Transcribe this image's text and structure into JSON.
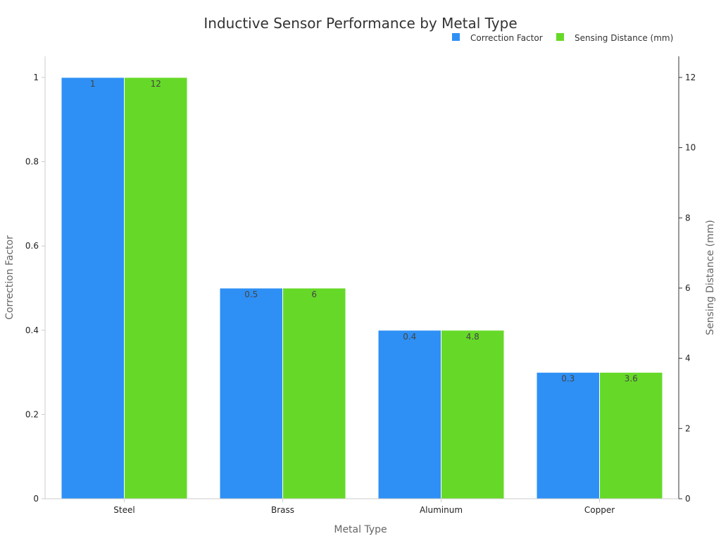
{
  "chart_data": {
    "type": "bar",
    "title": "Inductive Sensor Performance by Metal Type",
    "xlabel": "Metal Type",
    "categories": [
      "Steel",
      "Brass",
      "Aluminum",
      "Copper"
    ],
    "series": [
      {
        "name": "Correction Factor",
        "axis": "left",
        "color": "#2e90f5",
        "values": [
          1,
          0.5,
          0.4,
          0.3
        ],
        "labels": [
          "1",
          "0.5",
          "0.4",
          "0.3"
        ]
      },
      {
        "name": "Sensing Distance (mm)",
        "axis": "right",
        "color": "#66d928",
        "values": [
          12,
          6,
          4.8,
          3.6
        ],
        "labels": [
          "12",
          "6",
          "4.8",
          "3.6"
        ]
      }
    ],
    "y_left": {
      "label": "Correction Factor",
      "range": [
        0,
        1.05
      ],
      "ticks": [
        0,
        0.2,
        0.4,
        0.6,
        0.8,
        1
      ],
      "tick_labels": [
        "0",
        "0.2",
        "0.4",
        "0.6",
        "0.8",
        "1"
      ]
    },
    "y_right": {
      "label": "Sensing Distance (mm)",
      "range": [
        0,
        12.6
      ],
      "ticks": [
        0,
        2,
        4,
        6,
        8,
        10,
        12
      ],
      "tick_labels": [
        "0",
        "2",
        "4",
        "6",
        "8",
        "10",
        "12"
      ]
    },
    "legend_position": "top-right",
    "grid": false
  }
}
